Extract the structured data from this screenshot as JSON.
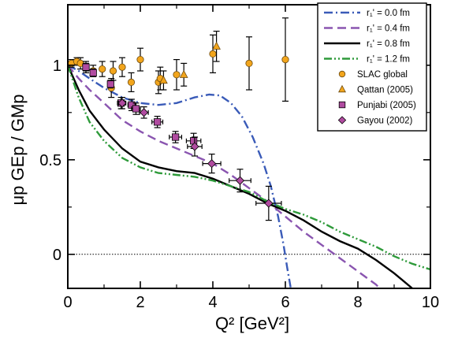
{
  "chart_data": {
    "type": "scatter",
    "xlabel": "Q² [GeV²]",
    "ylabel": "μp GEp / GMp",
    "xlim": [
      0,
      10
    ],
    "ylim": [
      -0.18,
      1.32
    ],
    "xticks": [
      0,
      2,
      4,
      6,
      8,
      10
    ],
    "yticks": [
      0,
      0.5,
      1
    ],
    "xtick_labels": [
      "0",
      "2",
      "4",
      "6",
      "8",
      "10"
    ],
    "ytick_labels": [
      "0",
      "0.5",
      "1"
    ],
    "reference_line": {
      "y": 0,
      "style": "dotted"
    },
    "legend_position": "top-right",
    "curves": [
      {
        "name": "r₁' = 0.0 fm",
        "color": "#3a5bb8",
        "dash": "dashdot",
        "points": [
          [
            0,
            1.0
          ],
          [
            0.3,
            0.97
          ],
          [
            0.6,
            0.93
          ],
          [
            1.0,
            0.88
          ],
          [
            1.5,
            0.83
          ],
          [
            2.0,
            0.8
          ],
          [
            2.5,
            0.79
          ],
          [
            3.0,
            0.8
          ],
          [
            3.5,
            0.83
          ],
          [
            3.9,
            0.845
          ],
          [
            4.2,
            0.84
          ],
          [
            4.5,
            0.8
          ],
          [
            4.8,
            0.73
          ],
          [
            5.1,
            0.62
          ],
          [
            5.4,
            0.48
          ],
          [
            5.6,
            0.36
          ],
          [
            5.8,
            0.2
          ],
          [
            5.95,
            0.05
          ],
          [
            6.05,
            -0.07
          ],
          [
            6.15,
            -0.18
          ]
        ]
      },
      {
        "name": "r₁' = 0.4 fm",
        "color": "#8a55b0",
        "dash": "dash",
        "points": [
          [
            0,
            1.0
          ],
          [
            0.3,
            0.93
          ],
          [
            0.6,
            0.87
          ],
          [
            1.0,
            0.8
          ],
          [
            1.5,
            0.71
          ],
          [
            2.0,
            0.65
          ],
          [
            2.5,
            0.6
          ],
          [
            3.0,
            0.56
          ],
          [
            3.5,
            0.52
          ],
          [
            4.0,
            0.48
          ],
          [
            4.5,
            0.42
          ],
          [
            5.0,
            0.35
          ],
          [
            5.5,
            0.28
          ],
          [
            6.0,
            0.2
          ],
          [
            6.5,
            0.12
          ],
          [
            7.0,
            0.05
          ],
          [
            7.5,
            -0.02
          ],
          [
            8.0,
            -0.09
          ],
          [
            8.5,
            -0.16
          ],
          [
            8.6,
            -0.18
          ]
        ]
      },
      {
        "name": "r₁' = 0.8 fm",
        "color": "#000000",
        "dash": "solid",
        "points": [
          [
            0,
            1.0
          ],
          [
            0.3,
            0.87
          ],
          [
            0.6,
            0.76
          ],
          [
            1.0,
            0.66
          ],
          [
            1.5,
            0.56
          ],
          [
            2.0,
            0.49
          ],
          [
            2.5,
            0.46
          ],
          [
            3.0,
            0.44
          ],
          [
            3.5,
            0.43
          ],
          [
            4.0,
            0.4
          ],
          [
            4.5,
            0.36
          ],
          [
            5.0,
            0.32
          ],
          [
            5.5,
            0.27
          ],
          [
            6.0,
            0.23
          ],
          [
            6.5,
            0.18
          ],
          [
            7.0,
            0.12
          ],
          [
            7.5,
            0.07
          ],
          [
            8.0,
            0.03
          ],
          [
            8.5,
            -0.03
          ],
          [
            9.0,
            -0.1
          ],
          [
            9.5,
            -0.18
          ]
        ]
      },
      {
        "name": "r₁' = 1.2 fm",
        "color": "#2e9a3a",
        "dash": "dashdotdot",
        "points": [
          [
            0,
            1.0
          ],
          [
            0.3,
            0.83
          ],
          [
            0.6,
            0.7
          ],
          [
            1.0,
            0.6
          ],
          [
            1.5,
            0.51
          ],
          [
            2.0,
            0.46
          ],
          [
            2.5,
            0.43
          ],
          [
            3.0,
            0.42
          ],
          [
            3.5,
            0.41
          ],
          [
            4.0,
            0.39
          ],
          [
            4.5,
            0.36
          ],
          [
            5.0,
            0.33
          ],
          [
            5.5,
            0.28
          ],
          [
            6.0,
            0.24
          ],
          [
            6.5,
            0.21
          ],
          [
            7.0,
            0.17
          ],
          [
            7.5,
            0.12
          ],
          [
            8.0,
            0.08
          ],
          [
            8.5,
            0.04
          ],
          [
            9.0,
            -0.01
          ],
          [
            9.5,
            -0.05
          ],
          [
            10.0,
            -0.08
          ]
        ]
      }
    ],
    "series": [
      {
        "name": "SLAC global",
        "marker": "circle",
        "color": "#f2a51c",
        "points": [
          {
            "x": 0.1,
            "y": 1.01,
            "ey": 0.02
          },
          {
            "x": 0.25,
            "y": 1.02,
            "ey": 0.02
          },
          {
            "x": 0.35,
            "y": 1.01,
            "ey": 0.03
          },
          {
            "x": 0.5,
            "y": 0.99,
            "ey": 0.03
          },
          {
            "x": 0.7,
            "y": 0.97,
            "ey": 0.03
          },
          {
            "x": 0.95,
            "y": 0.98,
            "ey": 0.04
          },
          {
            "x": 1.2,
            "y": 0.88,
            "ey": 0.05
          },
          {
            "x": 1.25,
            "y": 0.97,
            "ey": 0.05
          },
          {
            "x": 1.5,
            "y": 0.99,
            "ey": 0.05
          },
          {
            "x": 1.75,
            "y": 0.91,
            "ey": 0.05
          },
          {
            "x": 2.0,
            "y": 1.03,
            "ey": 0.06
          },
          {
            "x": 2.5,
            "y": 0.91,
            "ey": 0.06
          },
          {
            "x": 2.55,
            "y": 0.93,
            "ey": 0.06
          },
          {
            "x": 3.0,
            "y": 0.95,
            "ey": 0.08
          },
          {
            "x": 4.0,
            "y": 1.06,
            "ey": 0.1
          },
          {
            "x": 5.0,
            "y": 1.01,
            "ey": 0.14
          },
          {
            "x": 6.0,
            "y": 1.03,
            "ey": 0.22
          }
        ]
      },
      {
        "name": "Qattan (2005)",
        "marker": "triangle",
        "color": "#f2a51c",
        "points": [
          {
            "x": 2.64,
            "y": 0.92,
            "ey": 0.05
          },
          {
            "x": 3.2,
            "y": 0.95,
            "ey": 0.06
          },
          {
            "x": 4.1,
            "y": 1.1,
            "ey": 0.08
          }
        ]
      },
      {
        "name": "Punjabi (2005)",
        "marker": "square",
        "color": "#b04ba0",
        "points": [
          {
            "x": 0.5,
            "y": 0.99,
            "ey": 0.02,
            "ex": 0.05
          },
          {
            "x": 0.7,
            "y": 0.96,
            "ey": 0.02,
            "ex": 0.05
          },
          {
            "x": 1.18,
            "y": 0.9,
            "ey": 0.02,
            "ex": 0.08
          },
          {
            "x": 1.47,
            "y": 0.8,
            "ey": 0.03,
            "ex": 0.1
          },
          {
            "x": 1.76,
            "y": 0.79,
            "ey": 0.03,
            "ex": 0.1
          },
          {
            "x": 1.88,
            "y": 0.77,
            "ey": 0.03,
            "ex": 0.12
          },
          {
            "x": 2.47,
            "y": 0.7,
            "ey": 0.03,
            "ex": 0.15
          },
          {
            "x": 2.97,
            "y": 0.62,
            "ey": 0.03,
            "ex": 0.17
          },
          {
            "x": 3.47,
            "y": 0.6,
            "ey": 0.04,
            "ex": 0.2
          }
        ]
      },
      {
        "name": "Gayou (2002)",
        "marker": "diamond",
        "color": "#b04ba0",
        "points": [
          {
            "x": 1.5,
            "y": 0.8,
            "ey": 0.03,
            "ex": 0.1
          },
          {
            "x": 2.1,
            "y": 0.75,
            "ey": 0.03,
            "ex": 0.12
          },
          {
            "x": 3.5,
            "y": 0.57,
            "ey": 0.05,
            "ex": 0.2
          },
          {
            "x": 3.97,
            "y": 0.48,
            "ey": 0.05,
            "ex": 0.25
          },
          {
            "x": 4.75,
            "y": 0.39,
            "ey": 0.06,
            "ex": 0.3
          },
          {
            "x": 5.54,
            "y": 0.27,
            "ey": 0.09,
            "ex": 0.35
          }
        ]
      }
    ]
  }
}
